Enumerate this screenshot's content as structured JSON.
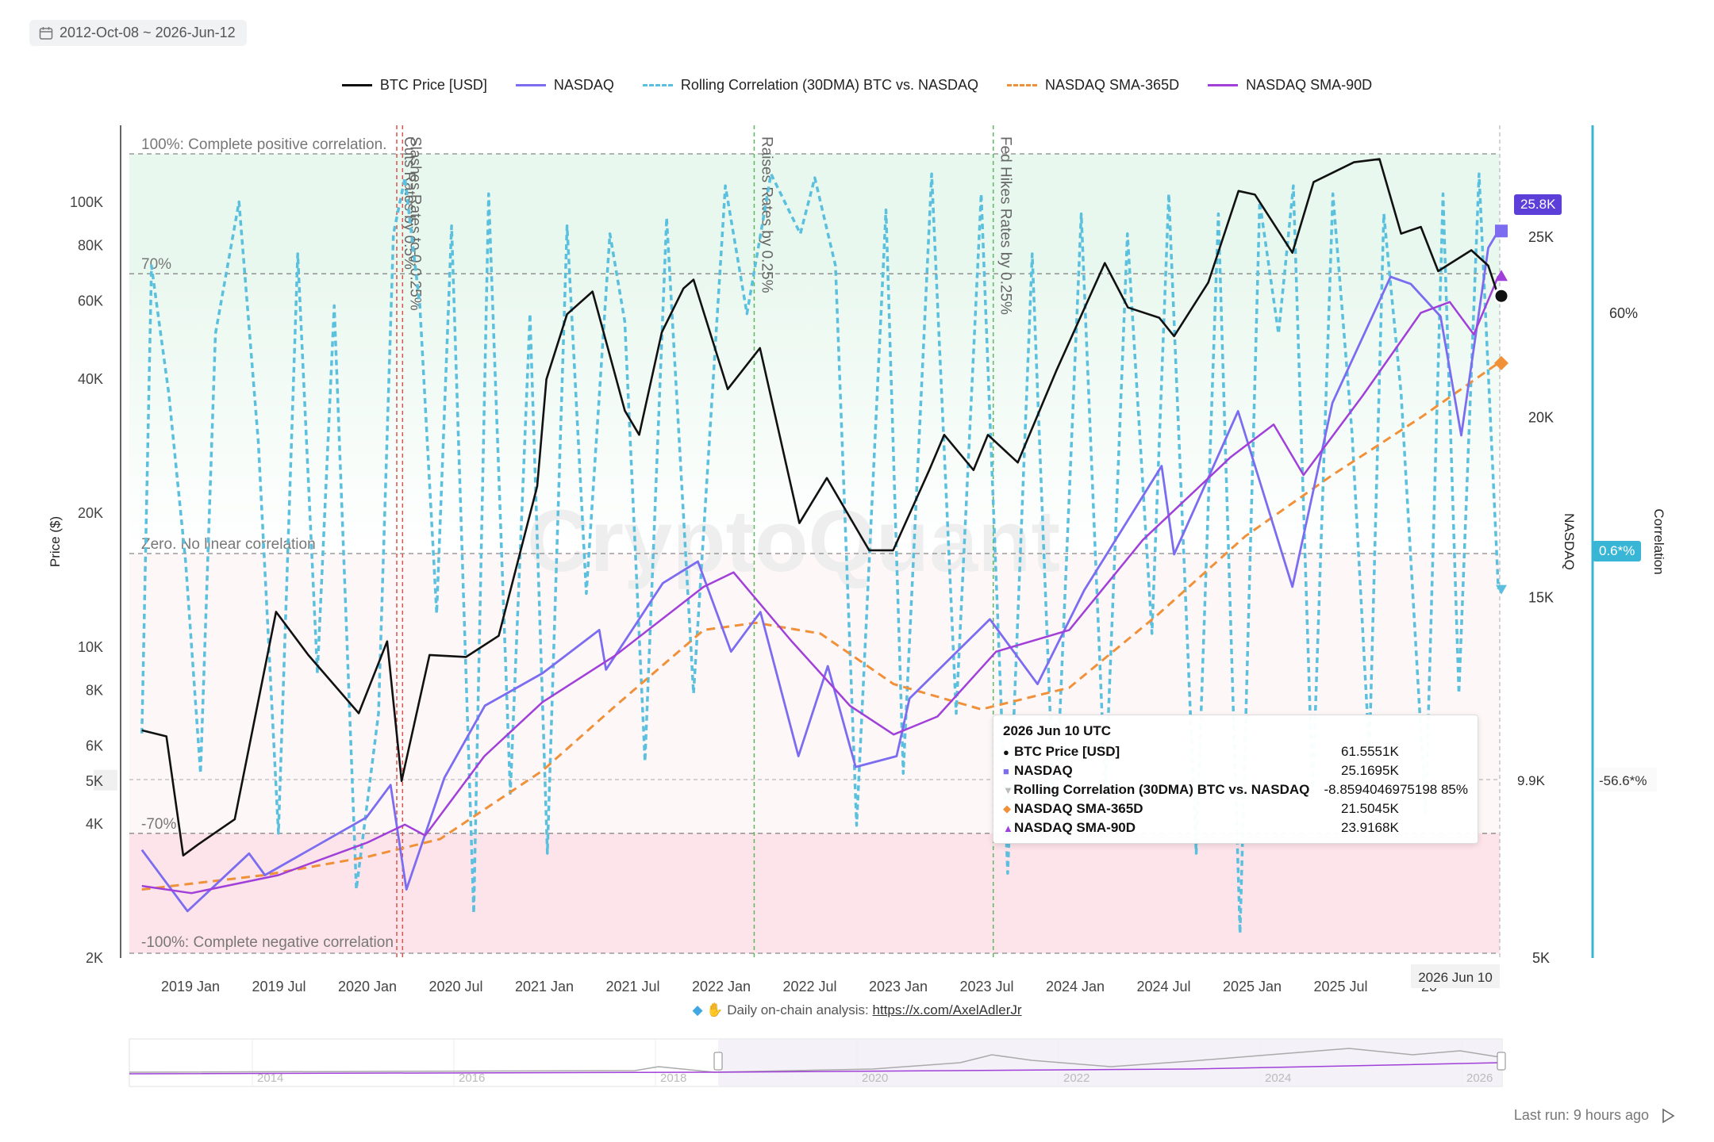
{
  "date_range": "2012-Oct-08 ~ 2026-Jun-12",
  "legend": [
    {
      "label": "BTC Price [USD]",
      "color": "#111111",
      "dashed": false
    },
    {
      "label": "NASDAQ",
      "color": "#7b6cf0",
      "dashed": false
    },
    {
      "label": "Rolling Correlation (30DMA) BTC vs. NASDAQ",
      "color": "#5bc0de",
      "dashed": true
    },
    {
      "label": "NASDAQ SMA-365D",
      "color": "#f0913a",
      "dashed": true
    },
    {
      "label": "NASDAQ SMA-90D",
      "color": "#a040d8",
      "dashed": false
    }
  ],
  "tooltip": {
    "title": "2026 Jun 10 UTC",
    "rows": [
      {
        "marker": "●",
        "color": "#111111",
        "name": "BTC Price [USD]",
        "value": "61.5551K"
      },
      {
        "marker": "■",
        "color": "#7b6cf0",
        "name": "NASDAQ",
        "value": "25.1695K"
      },
      {
        "marker": "▼",
        "color": "#bbbbbb",
        "name": "Rolling Correlation (30DMA) BTC vs. NASDAQ",
        "value": "-8.8594046975198 85%"
      },
      {
        "marker": "◆",
        "color": "#f0913a",
        "name": "NASDAQ SMA-365D",
        "value": "21.5045K"
      },
      {
        "marker": "▲",
        "color": "#a040d8",
        "name": "NASDAQ SMA-90D",
        "value": "23.9168K"
      }
    ]
  },
  "credit": {
    "prefix": "Daily on-chain analysis:",
    "link": "https://x.com/AxelAdlerJr"
  },
  "last_run": "Last run: 9 hours ago",
  "badges": {
    "nasdaq_current": "25.8K",
    "corr_current": "0.6*%",
    "corr_cursor": "-56.6*%",
    "nasdaq_cursor": "9.9K",
    "price_cursor": "5K",
    "x_cursor": "2026 Jun 10"
  },
  "watermark": "CryptoQuant",
  "chart_data": {
    "type": "line",
    "ylabel_left": "Price ($)",
    "ylabel_right": "NASDAQ",
    "ylabel_right2": "Correlation",
    "y_left_scale": "log",
    "y_left_ticks": [
      "2K",
      "4K",
      "5K",
      "6K",
      "8K",
      "10K",
      "20K",
      "40K",
      "60K",
      "80K",
      "100K"
    ],
    "y_right_ticks": [
      "5K",
      "15K",
      "20K",
      "25K"
    ],
    "y_right2_ticks": [
      "60%"
    ],
    "x_ticks": [
      "2019 Jan",
      "2019 Jul",
      "2020 Jan",
      "2020 Jul",
      "2021 Jan",
      "2021 Jul",
      "2022 Jan",
      "2022 Jul",
      "2023 Jan",
      "2023 Jul",
      "2024 Jan",
      "2024 Jul",
      "2025 Jan",
      "2025 Jul",
      "20"
    ],
    "bands": [
      {
        "label": "100%: Complete positive correlation.",
        "value": 100
      },
      {
        "label": "70%",
        "value": 70
      },
      {
        "label": "Zero. No linear correlation",
        "value": 0
      },
      {
        "label": "-70%",
        "value": -70
      },
      {
        "label": "-100%: Complete negative correlation",
        "value": -100
      }
    ],
    "events": [
      {
        "label": "Cuts Rates by 0.5%",
        "date": "2020-03-03",
        "color": "#d9534f"
      },
      {
        "label": "Slashes Rates to 0-0.25%",
        "date": "2020-03-15",
        "color": "#d9534f"
      },
      {
        "label": "Raises Rates by 0.25%",
        "date": "2022-03-16",
        "color": "#5cb85c"
      },
      {
        "label": "Fed Hikes Rates by 0.25%",
        "date": "2023-07-26",
        "color": "#5cb85c"
      }
    ],
    "series": [
      {
        "name": "BTC Price [USD]",
        "points": [
          [
            "2018-09-20",
            6500
          ],
          [
            "2018-11-10",
            6300
          ],
          [
            "2018-12-15",
            3400
          ],
          [
            "2019-01-15",
            3600
          ],
          [
            "2019-04-01",
            4100
          ],
          [
            "2019-06-26",
            12000
          ],
          [
            "2019-09-01",
            9600
          ],
          [
            "2019-12-15",
            7100
          ],
          [
            "2020-02-12",
            10300
          ],
          [
            "2020-03-13",
            5000
          ],
          [
            "2020-05-10",
            9600
          ],
          [
            "2020-07-25",
            9500
          ],
          [
            "2020-10-01",
            10600
          ],
          [
            "2020-12-20",
            23000
          ],
          [
            "2021-01-08",
            40000
          ],
          [
            "2021-02-20",
            56000
          ],
          [
            "2021-04-14",
            63000
          ],
          [
            "2021-06-20",
            34000
          ],
          [
            "2021-07-20",
            30000
          ],
          [
            "2021-09-05",
            51000
          ],
          [
            "2021-10-20",
            64000
          ],
          [
            "2021-11-10",
            67000
          ],
          [
            "2022-01-20",
            38000
          ],
          [
            "2022-03-28",
            47000
          ],
          [
            "2022-06-18",
            19000
          ],
          [
            "2022-08-14",
            24000
          ],
          [
            "2022-11-10",
            16500
          ],
          [
            "2022-12-30",
            16500
          ],
          [
            "2023-03-15",
            25000
          ],
          [
            "2023-04-15",
            30000
          ],
          [
            "2023-06-15",
            25000
          ],
          [
            "2023-07-15",
            30000
          ],
          [
            "2023-09-15",
            26000
          ],
          [
            "2023-12-05",
            42000
          ],
          [
            "2024-03-14",
            73000
          ],
          [
            "2024-05-01",
            58000
          ],
          [
            "2024-07-05",
            55000
          ],
          [
            "2024-08-05",
            50000
          ],
          [
            "2024-10-15",
            66000
          ],
          [
            "2024-12-17",
            106000
          ],
          [
            "2025-01-20",
            104000
          ],
          [
            "2025-04-08",
            77000
          ],
          [
            "2025-05-22",
            111000
          ],
          [
            "2025-08-14",
            123000
          ],
          [
            "2025-10-06",
            125000
          ],
          [
            "2025-11-20",
            85000
          ],
          [
            "2025-12-31",
            88000
          ],
          [
            "2026-02-05",
            70000
          ],
          [
            "2026-04-15",
            78000
          ],
          [
            "2026-05-20",
            72000
          ],
          [
            "2026-06-10",
            61555
          ]
        ]
      },
      {
        "name": "NASDAQ",
        "points": [
          [
            "2018-09-20",
            8000
          ],
          [
            "2018-12-24",
            6300
          ],
          [
            "2019-05-01",
            7900
          ],
          [
            "2019-06-03",
            7300
          ],
          [
            "2019-12-31",
            8900
          ],
          [
            "2020-02-19",
            9800
          ],
          [
            "2020-03-23",
            6900
          ],
          [
            "2020-06-10",
            10000
          ],
          [
            "2020-09-02",
            12000
          ],
          [
            "2020-12-31",
            12900
          ],
          [
            "2021-04-28",
            14100
          ],
          [
            "2021-05-12",
            13000
          ],
          [
            "2021-09-07",
            15400
          ],
          [
            "2021-11-19",
            16000
          ],
          [
            "2022-01-27",
            13500
          ],
          [
            "2022-03-29",
            14600
          ],
          [
            "2022-06-16",
            10600
          ],
          [
            "2022-08-16",
            13100
          ],
          [
            "2022-10-13",
            10300
          ],
          [
            "2023-01-06",
            10600
          ],
          [
            "2023-02-02",
            12200
          ],
          [
            "2023-07-19",
            14400
          ],
          [
            "2023-10-26",
            12600
          ],
          [
            "2024-01-31",
            15200
          ],
          [
            "2024-07-10",
            18650
          ],
          [
            "2024-08-05",
            16200
          ],
          [
            "2024-12-16",
            20170
          ],
          [
            "2025-04-08",
            15300
          ],
          [
            "2025-06-30",
            20400
          ],
          [
            "2025-10-29",
            23900
          ],
          [
            "2025-12-10",
            23700
          ],
          [
            "2026-02-10",
            22800
          ],
          [
            "2026-03-25",
            19500
          ],
          [
            "2026-05-20",
            24700
          ],
          [
            "2026-06-10",
            25170
          ]
        ]
      },
      {
        "name": "Rolling Correlation (30DMA) BTC vs. NASDAQ",
        "points": [
          [
            "2018-09-20",
            -45
          ],
          [
            "2018-10-10",
            72
          ],
          [
            "2018-11-15",
            40
          ],
          [
            "2018-12-20",
            -2
          ],
          [
            "2019-01-20",
            -55
          ],
          [
            "2019-02-20",
            55
          ],
          [
            "2019-04-10",
            88
          ],
          [
            "2019-05-20",
            28
          ],
          [
            "2019-07-01",
            -70
          ],
          [
            "2019-08-10",
            75
          ],
          [
            "2019-09-20",
            -30
          ],
          [
            "2019-10-25",
            62
          ],
          [
            "2019-12-10",
            -84
          ],
          [
            "2020-01-25",
            -40
          ],
          [
            "2020-02-25",
            80
          ],
          [
            "2020-03-20",
            94
          ],
          [
            "2020-04-20",
            62
          ],
          [
            "2020-05-25",
            -15
          ],
          [
            "2020-06-25",
            82
          ],
          [
            "2020-08-10",
            -90
          ],
          [
            "2020-09-10",
            90
          ],
          [
            "2020-10-25",
            -60
          ],
          [
            "2020-12-05",
            60
          ],
          [
            "2021-01-10",
            -75
          ],
          [
            "2021-02-20",
            82
          ],
          [
            "2021-04-01",
            -10
          ],
          [
            "2021-05-20",
            80
          ],
          [
            "2021-06-20",
            58
          ],
          [
            "2021-08-01",
            -52
          ],
          [
            "2021-09-15",
            84
          ],
          [
            "2021-11-10",
            -35
          ],
          [
            "2022-01-15",
            92
          ],
          [
            "2022-03-01",
            60
          ],
          [
            "2022-04-20",
            95
          ],
          [
            "2022-06-20",
            80
          ],
          [
            "2022-07-20",
            94
          ],
          [
            "2022-09-01",
            72
          ],
          [
            "2022-10-15",
            -68
          ],
          [
            "2022-12-15",
            86
          ],
          [
            "2023-01-20",
            -55
          ],
          [
            "2023-03-20",
            95
          ],
          [
            "2023-05-10",
            -40
          ],
          [
            "2023-07-01",
            90
          ],
          [
            "2023-08-25",
            -80
          ],
          [
            "2023-10-15",
            75
          ],
          [
            "2023-12-01",
            -70
          ],
          [
            "2024-01-25",
            85
          ],
          [
            "2024-03-15",
            -60
          ],
          [
            "2024-04-30",
            80
          ],
          [
            "2024-06-20",
            -20
          ],
          [
            "2024-07-25",
            90
          ],
          [
            "2024-09-20",
            -75
          ],
          [
            "2024-11-05",
            85
          ],
          [
            "2024-12-20",
            -95
          ],
          [
            "2025-01-30",
            88
          ],
          [
            "2025-03-10",
            55
          ],
          [
            "2025-04-10",
            92
          ],
          [
            "2025-05-20",
            -60
          ],
          [
            "2025-07-01",
            90
          ],
          [
            "2025-08-10",
            30
          ],
          [
            "2025-09-15",
            -50
          ],
          [
            "2025-10-15",
            85
          ],
          [
            "2025-11-20",
            40
          ],
          [
            "2026-01-10",
            -65
          ],
          [
            "2026-02-15",
            90
          ],
          [
            "2026-03-20",
            -35
          ],
          [
            "2026-05-01",
            95
          ],
          [
            "2026-06-10",
            -8.86
          ]
        ]
      },
      {
        "name": "NASDAQ SMA-365D",
        "points": [
          [
            "2018-09-20",
            6900
          ],
          [
            "2019-06-01",
            7300
          ],
          [
            "2019-12-31",
            7800
          ],
          [
            "2020-06-01",
            8300
          ],
          [
            "2020-12-31",
            10200
          ],
          [
            "2021-06-01",
            12000
          ],
          [
            "2021-12-01",
            14100
          ],
          [
            "2022-03-20",
            14300
          ],
          [
            "2022-08-01",
            14000
          ],
          [
            "2022-12-31",
            12600
          ],
          [
            "2023-07-01",
            11900
          ],
          [
            "2023-12-31",
            12500
          ],
          [
            "2024-06-30",
            14500
          ],
          [
            "2024-12-31",
            16700
          ],
          [
            "2025-06-30",
            18400
          ],
          [
            "2025-12-31",
            20000
          ],
          [
            "2026-06-10",
            21505
          ]
        ]
      },
      {
        "name": "NASDAQ SMA-90D",
        "points": [
          [
            "2018-09-20",
            7000
          ],
          [
            "2019-01-01",
            6800
          ],
          [
            "2019-07-01",
            7300
          ],
          [
            "2020-01-01",
            8200
          ],
          [
            "2020-03-20",
            8700
          ],
          [
            "2020-05-01",
            8400
          ],
          [
            "2020-09-01",
            10600
          ],
          [
            "2020-12-31",
            12100
          ],
          [
            "2021-06-01",
            13400
          ],
          [
            "2021-12-01",
            15300
          ],
          [
            "2022-02-01",
            15700
          ],
          [
            "2022-06-01",
            13800
          ],
          [
            "2022-10-01",
            12000
          ],
          [
            "2022-12-31",
            11200
          ],
          [
            "2023-04-01",
            11700
          ],
          [
            "2023-08-01",
            13500
          ],
          [
            "2023-12-31",
            14100
          ],
          [
            "2024-06-01",
            16600
          ],
          [
            "2024-12-01",
            18900
          ],
          [
            "2025-02-28",
            19800
          ],
          [
            "2025-05-01",
            18400
          ],
          [
            "2025-09-01",
            20600
          ],
          [
            "2025-12-31",
            22900
          ],
          [
            "2026-03-01",
            23200
          ],
          [
            "2026-04-20",
            22300
          ],
          [
            "2026-06-10",
            23917
          ]
        ]
      }
    ]
  }
}
